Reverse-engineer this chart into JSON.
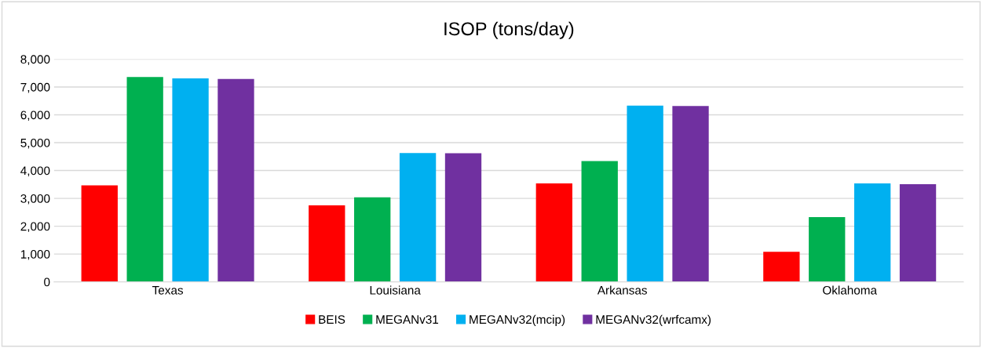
{
  "chart_data": {
    "type": "bar",
    "title": "ISOP (tons/day)",
    "categories": [
      "Texas",
      "Louisiana",
      "Arkansas",
      "Oklahoma"
    ],
    "series": [
      {
        "name": "BEIS",
        "color": "#ff0000",
        "values": [
          3470,
          2750,
          3540,
          1080
        ]
      },
      {
        "name": "MEGANv31",
        "color": "#00b050",
        "values": [
          7360,
          3040,
          4340,
          2330
        ]
      },
      {
        "name": "MEGANv32(mcip)",
        "color": "#00b0f0",
        "values": [
          7310,
          4630,
          6330,
          3540
        ]
      },
      {
        "name": "MEGANv32(wrfcamx)",
        "color": "#7030a0",
        "values": [
          7290,
          4620,
          6320,
          3510
        ]
      }
    ],
    "ylim": [
      0,
      8000
    ],
    "yticks": [
      {
        "value": 0,
        "label": "0"
      },
      {
        "value": 1000,
        "label": "1,000"
      },
      {
        "value": 2000,
        "label": "2,000"
      },
      {
        "value": 3000,
        "label": "3,000"
      },
      {
        "value": 4000,
        "label": "4,000"
      },
      {
        "value": 5000,
        "label": "5,000"
      },
      {
        "value": 6000,
        "label": "6,000"
      },
      {
        "value": 7000,
        "label": "7,000"
      },
      {
        "value": 8000,
        "label": "8,000"
      }
    ],
    "grid": "y",
    "legend": "bottom"
  }
}
